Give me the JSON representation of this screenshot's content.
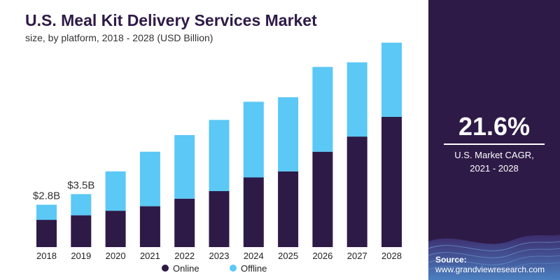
{
  "header": {
    "title": "U.S. Meal Kit Delivery Services Market",
    "subtitle": "size, by platform, 2018 - 2028 (USD Billion)"
  },
  "colors": {
    "online": "#2e1a47",
    "offline": "#5bc8f5",
    "sidebar": "#2e1a47"
  },
  "chart_data": {
    "type": "bar",
    "stacked": true,
    "categories": [
      "2018",
      "2019",
      "2020",
      "2021",
      "2022",
      "2023",
      "2024",
      "2025",
      "2026",
      "2027",
      "2028"
    ],
    "series": [
      {
        "name": "Online",
        "values": [
          1.8,
          2.1,
          2.4,
          2.7,
          3.2,
          3.7,
          4.6,
          5.0,
          6.3,
          7.3,
          8.6
        ]
      },
      {
        "name": "Offline",
        "values": [
          1.0,
          1.4,
          2.6,
          3.6,
          4.2,
          4.7,
          5.0,
          4.9,
          5.6,
          4.9,
          4.9
        ]
      }
    ],
    "data_labels": [
      {
        "category": "2018",
        "text": "$2.8B"
      },
      {
        "category": "2019",
        "text": "$3.5B"
      }
    ],
    "legend": {
      "placement": "bottom",
      "items": [
        "Online",
        "Offline"
      ]
    },
    "ylim": [
      0,
      13.5
    ],
    "grid": false
  },
  "sidebar": {
    "cagr_value": "21.6%",
    "cagr_label_line1": "U.S. Market CAGR,",
    "cagr_label_line2": "2021 - 2028",
    "source_label": "Source:",
    "source_url": "www.grandviewresearch.com"
  }
}
